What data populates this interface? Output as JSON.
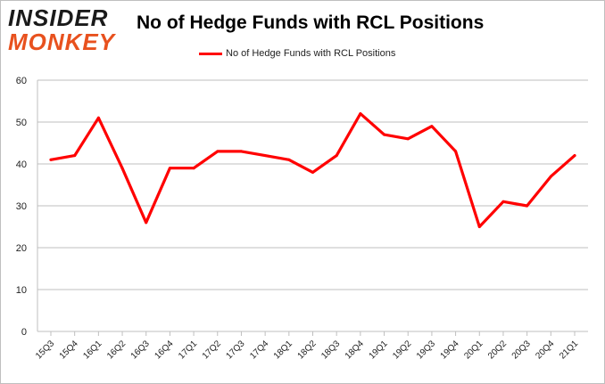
{
  "logo": {
    "line1": "INSIDER",
    "line2": "MONKEY"
  },
  "chart_data": {
    "type": "line",
    "title": "No of Hedge Funds with RCL Positions",
    "xlabel": "",
    "ylabel": "",
    "categories": [
      "15Q3",
      "15Q4",
      "16Q1",
      "16Q2",
      "16Q3",
      "16Q4",
      "17Q1",
      "17Q2",
      "17Q3",
      "17Q4",
      "18Q1",
      "18Q2",
      "18Q3",
      "18Q4",
      "19Q1",
      "19Q2",
      "19Q3",
      "19Q4",
      "20Q1",
      "20Q2",
      "20Q3",
      "20Q4",
      "21Q1"
    ],
    "series": [
      {
        "name": "No of Hedge Funds with RCL Positions",
        "values": [
          41,
          42,
          51,
          39,
          26,
          39,
          39,
          43,
          43,
          42,
          41,
          38,
          42,
          52,
          47,
          46,
          49,
          43,
          25,
          31,
          30,
          37,
          42
        ],
        "color": "#ff0000"
      }
    ],
    "ylim": [
      0,
      60
    ],
    "yticks": [
      "0",
      "10",
      "20",
      "30",
      "40",
      "50",
      "60"
    ],
    "grid": true,
    "legend_position": "top-center"
  }
}
